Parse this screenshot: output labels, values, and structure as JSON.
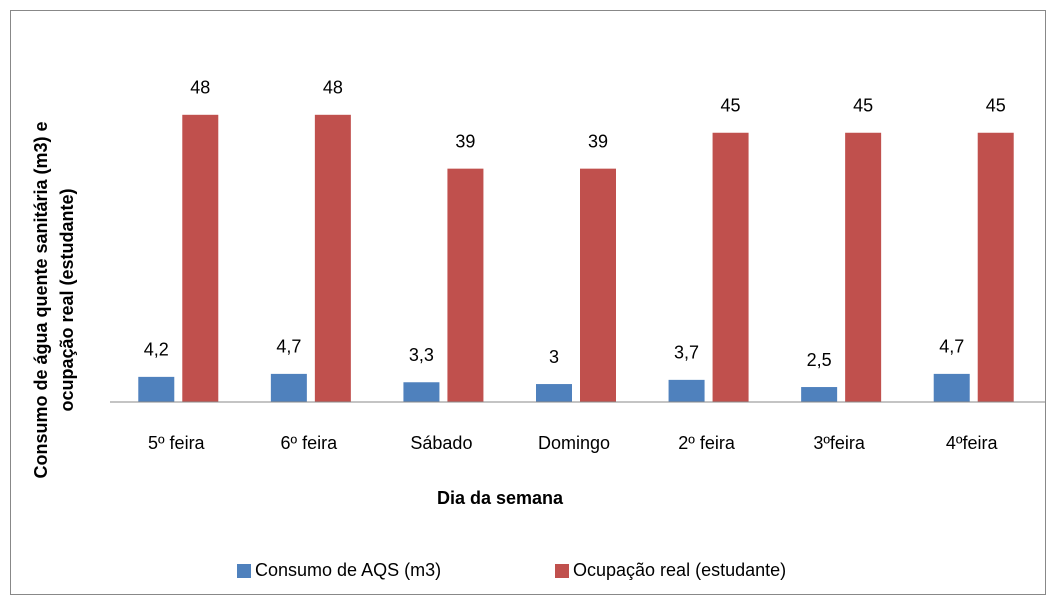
{
  "chart_data": {
    "type": "bar",
    "x_label": "Dia da semana",
    "y_label": [
      "Consumo de água quente sanitária (m3) e",
      "ocupação real (estudante)"
    ],
    "categories": [
      "5º feira",
      "6º feira",
      "Sábado",
      "Domingo",
      "2º feira",
      "3ºfeira",
      "4ºfeira"
    ],
    "series": [
      {
        "name": "Consumo de AQS (m3)",
        "color": "#4f81bd",
        "values": [
          4.2,
          4.7,
          3.3,
          3,
          3.7,
          2.5,
          4.7
        ],
        "value_labels": [
          "4,2",
          "4,7",
          "3,3",
          "3",
          "3,7",
          "2,5",
          "4,7"
        ]
      },
      {
        "name": "Ocupação real (estudante)",
        "color": "#c0504d",
        "values": [
          48,
          48,
          39,
          39,
          45,
          45,
          45
        ]
      }
    ],
    "ylim": [
      0,
      60
    ],
    "legend": "bottom"
  }
}
